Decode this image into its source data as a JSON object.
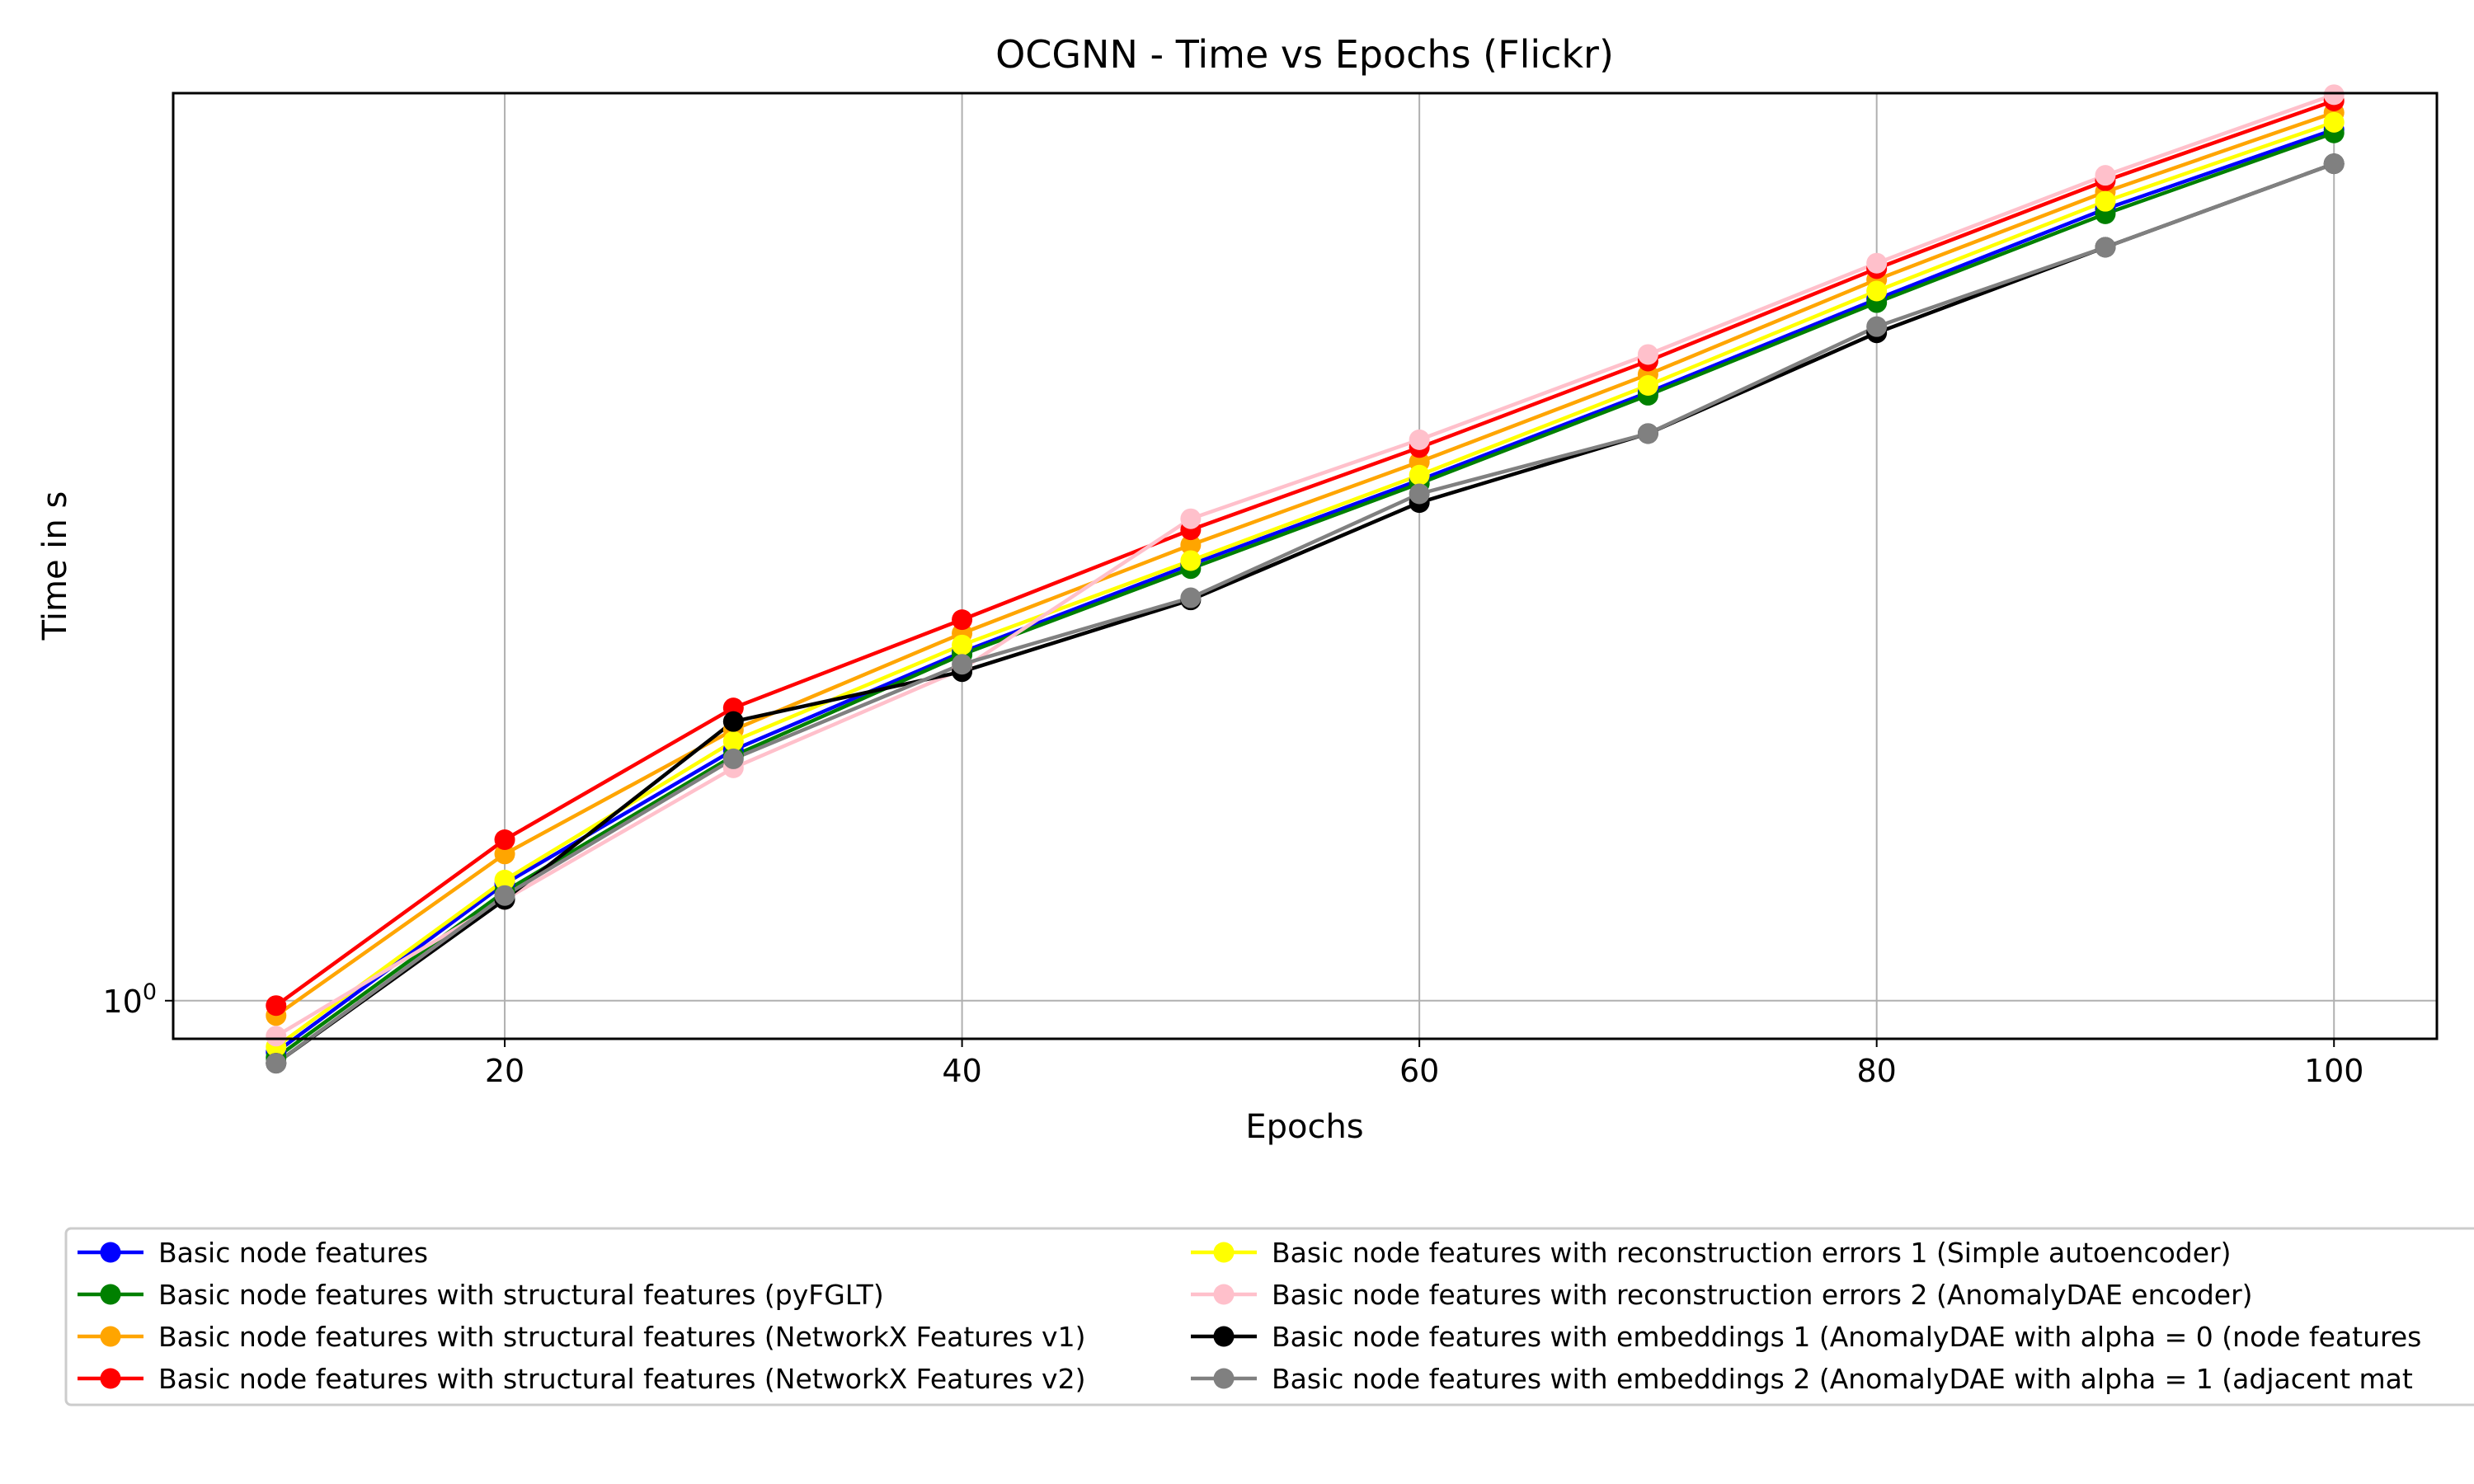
{
  "chart_data": {
    "type": "line",
    "title": "OCGNN - Time vs Epochs (Flickr)",
    "xlabel": "Epochs",
    "ylabel": "Time in s",
    "x": [
      10,
      20,
      30,
      40,
      50,
      60,
      70,
      80,
      90,
      100
    ],
    "xlim": [
      5.5,
      104.5
    ],
    "xticks": [
      20,
      40,
      60,
      80,
      100
    ],
    "yscale": "log",
    "ylim": [
      0.925,
      6.4
    ],
    "yticks": [
      {
        "value": 1.0,
        "label": "10",
        "sup": "0"
      }
    ],
    "grid": true,
    "legend_position": "bottom",
    "series": [
      {
        "name": "Basic node features",
        "color": "#0000ff",
        "values": [
          0.9,
          1.27,
          1.67,
          2.04,
          2.44,
          2.9,
          3.47,
          4.2,
          5.05,
          5.94
        ]
      },
      {
        "name": "Basic node features with structural features (pyFGLT)",
        "color": "#008000",
        "values": [
          0.89,
          1.25,
          1.65,
          2.03,
          2.42,
          2.88,
          3.45,
          4.17,
          5.0,
          5.9
        ]
      },
      {
        "name": "Basic node features with structural features (NetworkX Features v1)",
        "color": "#ffa500",
        "values": [
          0.97,
          1.35,
          1.74,
          2.12,
          2.54,
          3.01,
          3.6,
          4.37,
          5.23,
          6.15
        ]
      },
      {
        "name": "Basic node features with structural features (NetworkX Features v2)",
        "color": "#ff0000",
        "values": [
          0.99,
          1.39,
          1.82,
          2.18,
          2.62,
          3.1,
          3.7,
          4.47,
          5.35,
          6.3
        ]
      },
      {
        "name": "Basic node features with reconstruction errors 1 (Simple autoencoder)",
        "color": "#ffff00",
        "values": [
          0.91,
          1.28,
          1.7,
          2.07,
          2.46,
          2.93,
          3.52,
          4.27,
          5.13,
          6.03
        ]
      },
      {
        "name": "Basic node features with reconstruction errors 2 (AnomalyDAE encoder)",
        "color": "#ffc0cb",
        "values": [
          0.93,
          1.23,
          1.61,
          1.97,
          2.68,
          3.15,
          3.75,
          4.52,
          5.41,
          6.38
        ]
      },
      {
        "name": "Basic node features with embeddings 1 (AnomalyDAE with alpha = 0 (node features",
        "color": "#000000",
        "values": [
          0.88,
          1.23,
          1.77,
          1.96,
          2.27,
          2.77,
          3.19,
          3.92,
          4.67,
          5.54
        ]
      },
      {
        "name": "Basic node features with embeddings 2 (AnomalyDAE with alpha = 1 (adjacent mat",
        "color": "#808080",
        "values": [
          0.88,
          1.24,
          1.64,
          1.99,
          2.28,
          2.82,
          3.19,
          3.97,
          4.67,
          5.54
        ]
      }
    ]
  }
}
